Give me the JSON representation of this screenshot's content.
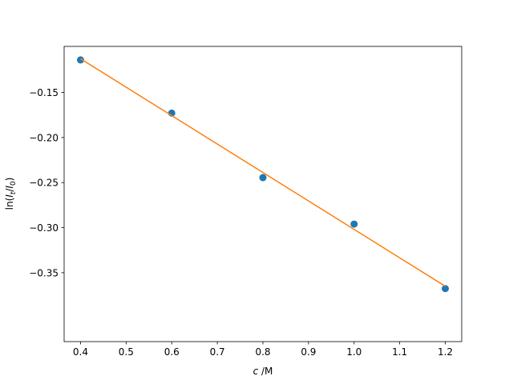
{
  "chart_data": {
    "type": "scatter",
    "title": "",
    "xlabel": {
      "var": "c",
      "unit": " /M"
    },
    "ylabel": {
      "fn": "ln(",
      "num": "I",
      "num_sub": "t",
      "sep": "/",
      "den": "I",
      "den_sub": "0",
      "close": ")"
    },
    "xlim": [
      0.364,
      1.236
    ],
    "ylim": [
      -0.4264,
      -0.0989
    ],
    "x_ticks": [
      0.4,
      0.5,
      0.6,
      0.7,
      0.8,
      0.9,
      1.0,
      1.1,
      1.2
    ],
    "x_tick_labels": [
      "0.4",
      "0.5",
      "0.6",
      "0.7",
      "0.8",
      "0.9",
      "1.0",
      "1.1",
      "1.2"
    ],
    "y_ticks": [
      -0.15,
      -0.2,
      -0.25,
      -0.3,
      -0.35
    ],
    "y_tick_labels": [
      "−0.15",
      "−0.20",
      "−0.25",
      "−0.30",
      "−0.35"
    ],
    "grid": false,
    "series": [
      {
        "kind": "scatter",
        "color": "#1f77b4",
        "x": [
          0.4,
          0.6,
          0.8,
          1.0,
          1.2
        ],
        "y": [
          -0.1139,
          -0.1729,
          -0.2445,
          -0.296,
          -0.3676
        ]
      },
      {
        "kind": "line",
        "color": "#ff7f0e",
        "x": [
          0.4,
          1.2
        ],
        "y": [
          -0.1126,
          -0.365
        ]
      }
    ]
  }
}
